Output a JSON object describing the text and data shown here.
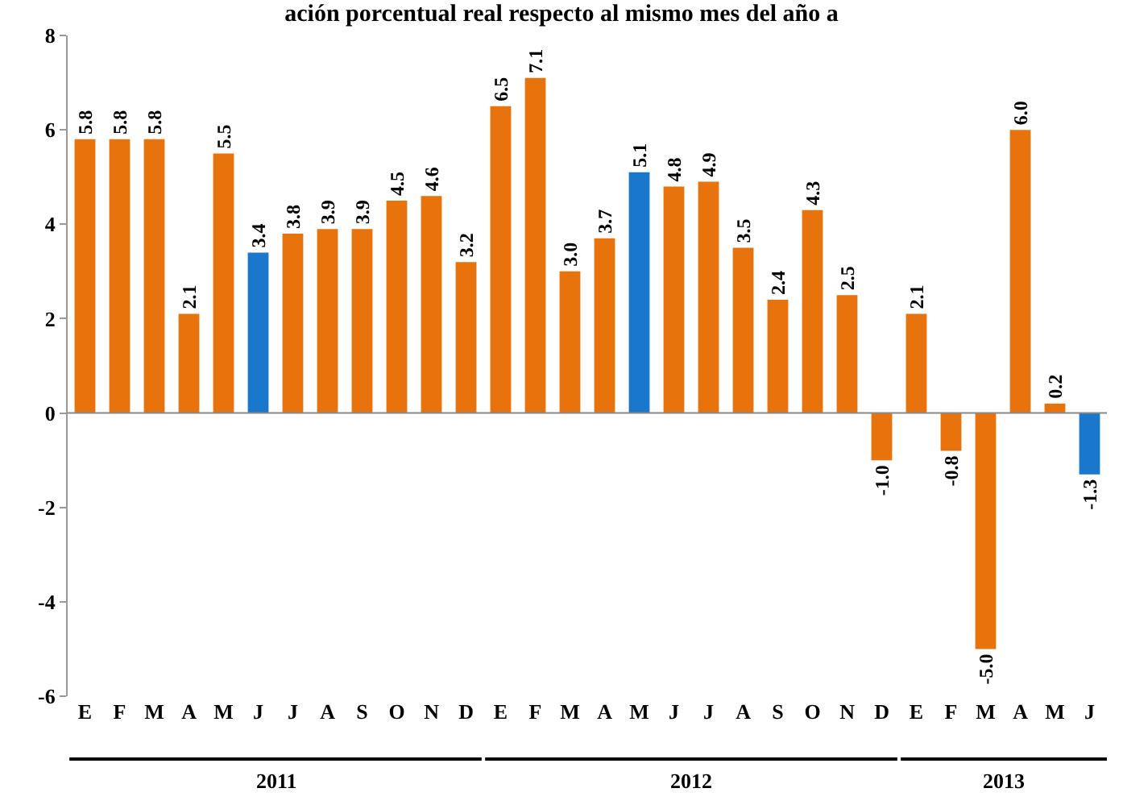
{
  "chart_data": {
    "type": "bar",
    "title": "ación porcentual real respecto al mismo mes del año a",
    "categories": [
      "E",
      "F",
      "M",
      "A",
      "M",
      "J",
      "J",
      "A",
      "S",
      "O",
      "N",
      "D",
      "E",
      "F",
      "M",
      "A",
      "M",
      "J",
      "J",
      "A",
      "S",
      "O",
      "N",
      "D",
      "E",
      "F",
      "M",
      "A",
      "M",
      "J"
    ],
    "values": [
      5.8,
      5.8,
      5.8,
      2.1,
      5.5,
      3.4,
      3.8,
      3.9,
      3.9,
      4.5,
      4.6,
      3.2,
      6.5,
      7.1,
      3.0,
      3.7,
      5.1,
      4.8,
      4.9,
      3.5,
      2.4,
      4.3,
      2.5,
      -1.0,
      2.1,
      -0.8,
      -5.0,
      6.0,
      0.2,
      -1.3
    ],
    "colors": [
      "#e8730c",
      "#e8730c",
      "#e8730c",
      "#e8730c",
      "#e8730c",
      "#1a78cc",
      "#e8730c",
      "#e8730c",
      "#e8730c",
      "#e8730c",
      "#e8730c",
      "#e8730c",
      "#e8730c",
      "#e8730c",
      "#e8730c",
      "#e8730c",
      "#1a78cc",
      "#e8730c",
      "#e8730c",
      "#e8730c",
      "#e8730c",
      "#e8730c",
      "#e8730c",
      "#e8730c",
      "#e8730c",
      "#e8730c",
      "#e8730c",
      "#e8730c",
      "#e8730c",
      "#1a78cc"
    ],
    "value_labels": [
      "5.8",
      "5.8",
      "5.8",
      "2.1",
      "5.5",
      "3.4",
      "3.8",
      "3.9",
      "3.9",
      "4.5",
      "4.6",
      "3.2",
      "6.5",
      "7.1",
      "3.0",
      "3.7",
      "5.1",
      "4.8",
      "4.9",
      "3.5",
      "2.4",
      "4.3",
      "2.5",
      "-1.0",
      "2.1",
      "-0.8",
      "-5.0",
      "6.0",
      "0.2",
      "-1.3"
    ],
    "ylim": [
      -6,
      8
    ],
    "yticks": [
      -6,
      -4,
      -2,
      0,
      2,
      4,
      6,
      8
    ],
    "annotations": [
      "2011",
      "2012",
      "2013"
    ]
  }
}
